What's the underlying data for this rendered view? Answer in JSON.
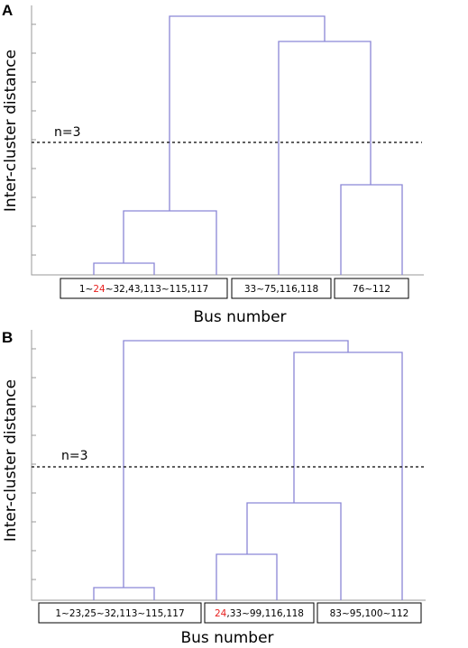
{
  "panels": [
    {
      "letter": "A",
      "ylabel": "Inter-cluster distance",
      "xlabel": "Bus number",
      "threshold_label": "n=3",
      "clusters": [
        {
          "parts": [
            {
              "text": "1~"
            },
            {
              "text": "24",
              "highlight": true
            },
            {
              "text": "~32,43,113~115,117"
            }
          ]
        },
        {
          "parts": [
            {
              "text": "33~75,116,118"
            }
          ]
        },
        {
          "parts": [
            {
              "text": "76~112"
            }
          ]
        }
      ]
    },
    {
      "letter": "B",
      "ylabel": "Inter-cluster distance",
      "xlabel": "Bus number",
      "threshold_label": "n=3",
      "clusters": [
        {
          "parts": [
            {
              "text": "1~23,25~32,113~115,117"
            }
          ]
        },
        {
          "parts": [
            {
              "text": "24",
              "highlight": true
            },
            {
              "text": ",33~99,116,118"
            }
          ]
        },
        {
          "parts": [
            {
              "text": "83~95,100~112"
            }
          ]
        }
      ]
    }
  ],
  "colors": {
    "branch": "#8a86d6",
    "highlight": "#e8201e",
    "axis": "#9a9a9a"
  }
}
